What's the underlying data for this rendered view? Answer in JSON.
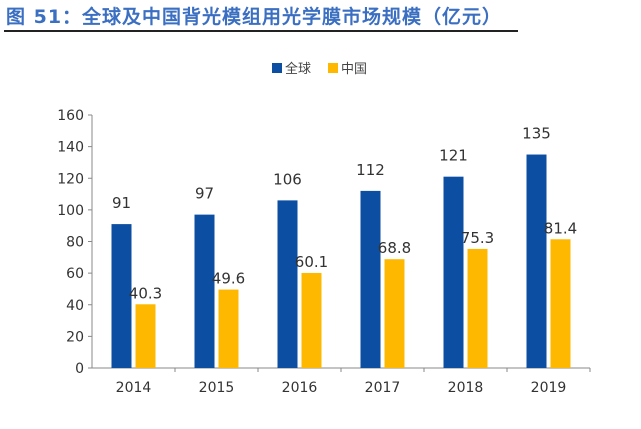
{
  "figure_title": "图 51：全球及中国背光模组用光学膜市场规模（亿元）",
  "chart_data": {
    "type": "bar",
    "categories": [
      "2014",
      "2015",
      "2016",
      "2017",
      "2018",
      "2019"
    ],
    "series": [
      {
        "name": "全球",
        "values": [
          91,
          97,
          106,
          112,
          121,
          135
        ],
        "labels": [
          "91",
          "97",
          "106",
          "112",
          "121",
          "135"
        ],
        "color": "#0b4ea2"
      },
      {
        "name": "中国",
        "values": [
          40.3,
          49.6,
          60.1,
          68.8,
          75.3,
          81.4
        ],
        "labels": [
          "40.3",
          "49.6",
          "60.1",
          "68.8",
          "75.3",
          "81.4"
        ],
        "color": "#ffb800"
      }
    ],
    "ylim": [
      0,
      160
    ],
    "yticks": [
      "0",
      "20",
      "40",
      "60",
      "80",
      "100",
      "120",
      "140",
      "160"
    ],
    "grid": false,
    "legend": "top-center"
  }
}
